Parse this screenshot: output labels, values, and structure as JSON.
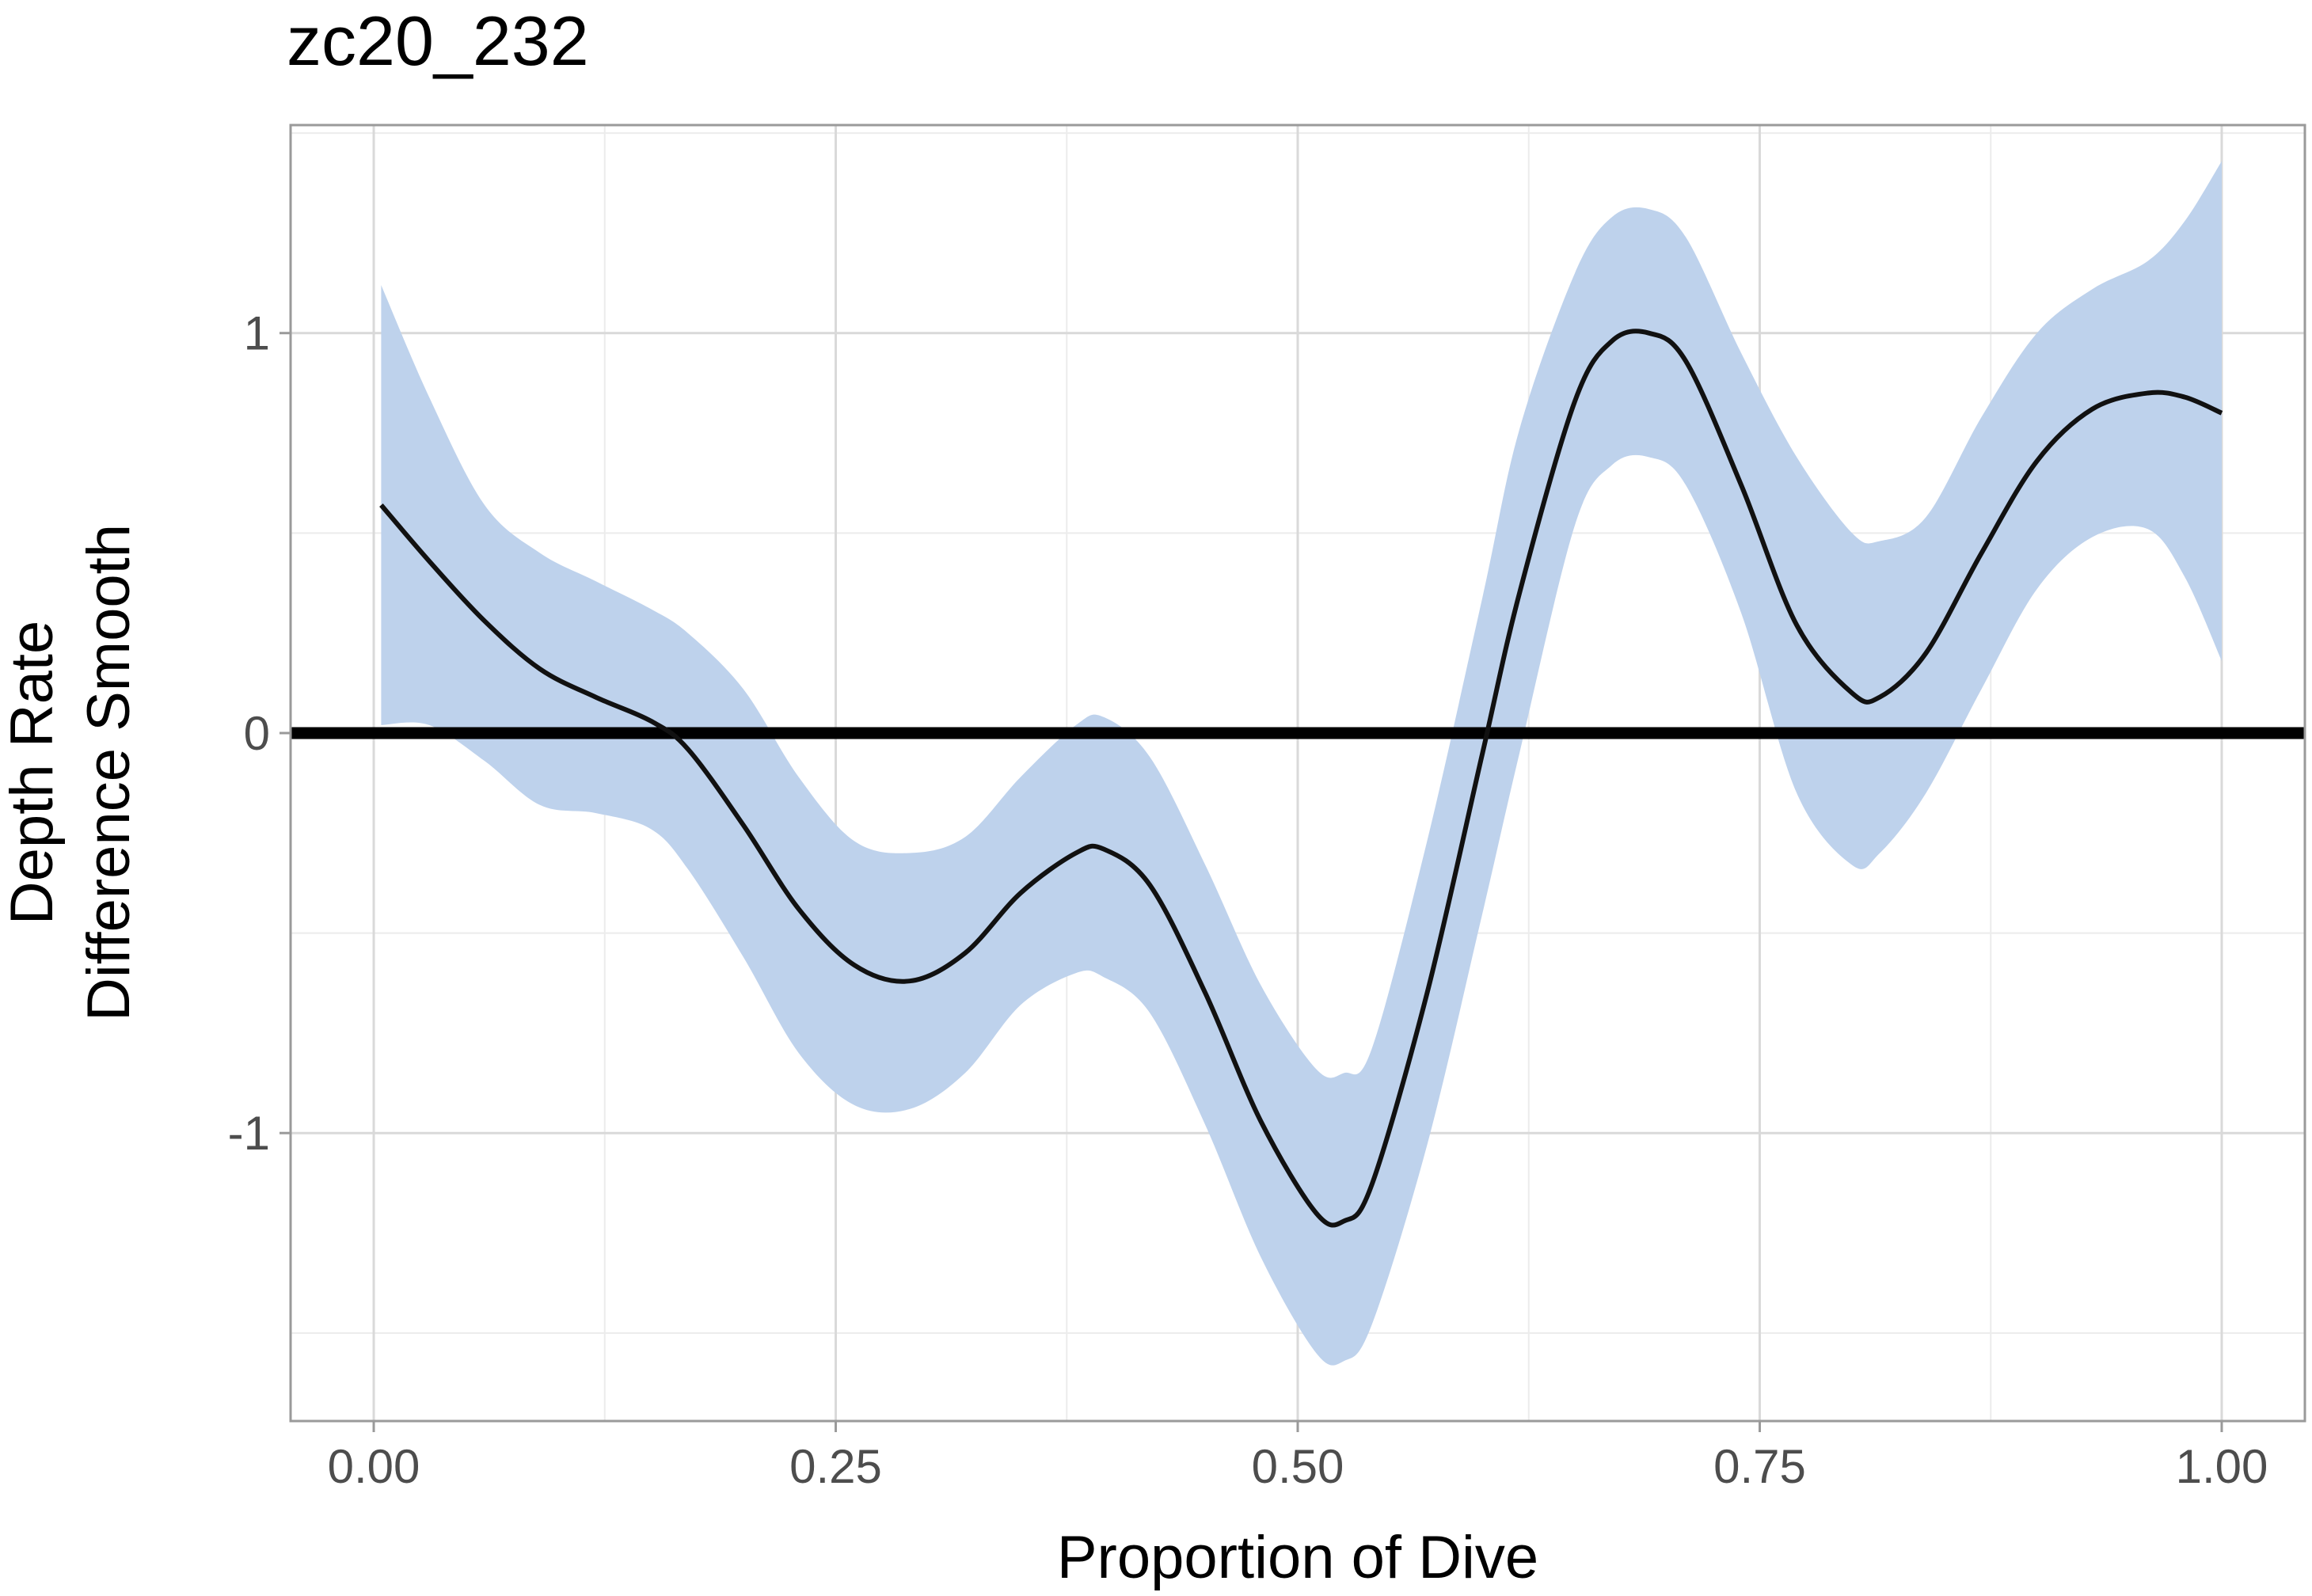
{
  "chart_data": {
    "type": "line",
    "title": "zc20_232",
    "xlabel": "Proportion of Dive",
    "ylabel_lines": [
      "Depth Rate",
      "Difference Smooth"
    ],
    "xlim": [
      -0.045,
      1.045
    ],
    "ylim": [
      -1.72,
      1.52
    ],
    "x_ticks": [
      0.0,
      0.25,
      0.5,
      0.75,
      1.0
    ],
    "x_tick_labels": [
      "0.00",
      "0.25",
      "0.50",
      "0.75",
      "1.00"
    ],
    "y_ticks": [
      -1,
      0,
      1
    ],
    "y_tick_labels": [
      "-1",
      "0",
      "1"
    ],
    "x_minor_ticks": [
      0.125,
      0.375,
      0.625,
      0.875
    ],
    "y_minor_ticks": [
      -1.5,
      -0.5,
      0.5,
      1.5
    ],
    "reference_line_y": 0,
    "grid": true,
    "colors": {
      "line": "#111111",
      "ribbon": "#bed2ec",
      "reference": "#000000"
    },
    "series": [
      {
        "x": [
          0.004,
          0.03,
          0.06,
          0.09,
          0.12,
          0.15,
          0.17,
          0.2,
          0.23,
          0.26,
          0.29,
          0.32,
          0.35,
          0.38,
          0.395,
          0.42,
          0.45,
          0.48,
          0.51,
          0.525,
          0.54,
          0.57,
          0.6,
          0.62,
          0.65,
          0.67,
          0.69,
          0.71,
          0.74,
          0.77,
          0.8,
          0.815,
          0.84,
          0.87,
          0.9,
          0.93,
          0.96,
          0.98,
          1.0
        ],
        "y": [
          0.57,
          0.43,
          0.28,
          0.16,
          0.09,
          0.03,
          -0.04,
          -0.23,
          -0.44,
          -0.58,
          -0.62,
          -0.55,
          -0.4,
          -0.3,
          -0.29,
          -0.38,
          -0.65,
          -0.97,
          -1.2,
          -1.22,
          -1.13,
          -0.65,
          -0.05,
          0.35,
          0.83,
          0.98,
          1.0,
          0.93,
          0.62,
          0.27,
          0.1,
          0.09,
          0.2,
          0.45,
          0.68,
          0.81,
          0.85,
          0.84,
          0.8
        ],
        "lower": [
          0.02,
          0.02,
          -0.07,
          -0.18,
          -0.2,
          -0.24,
          -0.34,
          -0.56,
          -0.8,
          -0.93,
          -0.94,
          -0.85,
          -0.68,
          -0.6,
          -0.61,
          -0.7,
          -0.98,
          -1.31,
          -1.55,
          -1.57,
          -1.48,
          -1.03,
          -0.45,
          -0.05,
          0.52,
          0.67,
          0.69,
          0.62,
          0.3,
          -0.15,
          -0.33,
          -0.3,
          -0.15,
          0.11,
          0.36,
          0.49,
          0.51,
          0.39,
          0.18
        ],
        "upper": [
          1.12,
          0.84,
          0.57,
          0.45,
          0.38,
          0.31,
          0.25,
          0.11,
          -0.11,
          -0.27,
          -0.3,
          -0.26,
          -0.11,
          0.02,
          0.04,
          -0.06,
          -0.33,
          -0.63,
          -0.84,
          -0.85,
          -0.79,
          -0.27,
          0.34,
          0.76,
          1.15,
          1.29,
          1.31,
          1.24,
          0.95,
          0.69,
          0.5,
          0.48,
          0.54,
          0.79,
          1.0,
          1.11,
          1.18,
          1.28,
          1.43
        ]
      }
    ]
  }
}
